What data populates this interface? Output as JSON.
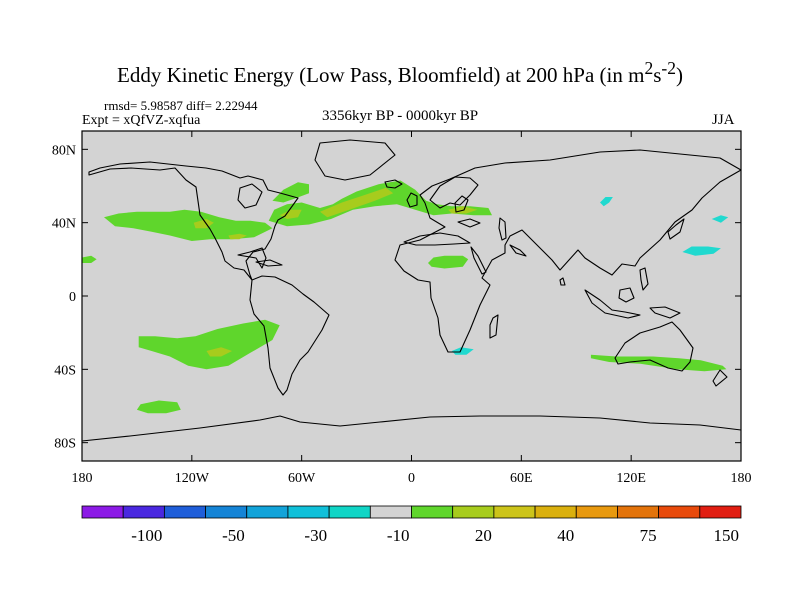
{
  "header": {
    "title_main": "Eddy Kinetic Energy (Low Pass, Bloomfield) at 200 hPa (in m",
    "title_sup1": "2",
    "title_s": "s",
    "title_sup2": "-2",
    "title_close": ")",
    "stats": "rmsd= 5.98587 diff= 2.22944",
    "expt": "Expt = xQfVZ-xqfua",
    "period": "3356kyr BP - 0000kyr BP",
    "season": "JJA"
  },
  "colors": {
    "land_mask": "#d3d3d3",
    "coastline": "#000000",
    "green": "#5fd62c",
    "yellow_green": "#a7cc1d",
    "cyan": "#20d9cf"
  },
  "chart_data": {
    "type": "heatmap",
    "title": "Eddy Kinetic Energy (Low Pass, Bloomfield) at 200 hPa (in m2s-2)",
    "projection": "cylindrical-equidistant",
    "xlim": [
      -180,
      180
    ],
    "ylim": [
      -90,
      90
    ],
    "x_ticks": [
      -180,
      -120,
      -60,
      0,
      60,
      120,
      180
    ],
    "x_tick_labels": [
      "180",
      "120W",
      "60W",
      "0",
      "60E",
      "120E",
      "180"
    ],
    "y_ticks": [
      80,
      40,
      0,
      -40,
      -80
    ],
    "y_tick_labels": [
      "80N",
      "40N",
      "0",
      "40S",
      "80S"
    ],
    "colorbar": {
      "colors": [
        "#8c1ae6",
        "#4a28e0",
        "#1f5ed9",
        "#1584d6",
        "#12a3d9",
        "#10c0d9",
        "#10d5c6",
        "#d3d3d3",
        "#5fd62c",
        "#a7cc1d",
        "#ccc41a",
        "#dab00e",
        "#e8990f",
        "#e3730a",
        "#e84a0b",
        "#e11e12"
      ],
      "labels": [
        "-100",
        "-50",
        "-30",
        "-10",
        "20",
        "40",
        "75",
        "150"
      ],
      "label_boundary_index": [
        2,
        4,
        6,
        8,
        10,
        12,
        14,
        16
      ]
    },
    "regions": [
      {
        "name": "north-atlantic-green-band",
        "level": "10 to 20",
        "color": "green",
        "lonlat": [
          [
            -78,
            41
          ],
          [
            -75,
            47
          ],
          [
            -68,
            50
          ],
          [
            -60,
            51
          ],
          [
            -50,
            48
          ],
          [
            -43,
            50
          ],
          [
            -38,
            53
          ],
          [
            -30,
            57
          ],
          [
            -18,
            61
          ],
          [
            -6,
            63
          ],
          [
            2,
            58
          ],
          [
            8,
            52
          ],
          [
            14,
            50
          ],
          [
            22,
            49
          ],
          [
            32,
            49
          ],
          [
            42,
            48
          ],
          [
            44,
            44
          ],
          [
            34,
            44
          ],
          [
            22,
            45
          ],
          [
            12,
            44
          ],
          [
            2,
            47
          ],
          [
            -8,
            50
          ],
          [
            -20,
            49
          ],
          [
            -32,
            47
          ],
          [
            -44,
            42
          ],
          [
            -56,
            39
          ],
          [
            -68,
            38
          ]
        ]
      },
      {
        "name": "north-america-pacific-green-band",
        "level": "10 to 20",
        "color": "green",
        "lonlat": [
          [
            -168,
            43
          ],
          [
            -160,
            45
          ],
          [
            -150,
            46
          ],
          [
            -140,
            46
          ],
          [
            -132,
            46
          ],
          [
            -124,
            47
          ],
          [
            -115,
            46
          ],
          [
            -105,
            43
          ],
          [
            -96,
            41
          ],
          [
            -88,
            41
          ],
          [
            -80,
            40
          ],
          [
            -76,
            37
          ],
          [
            -86,
            32
          ],
          [
            -98,
            31
          ],
          [
            -110,
            31
          ],
          [
            -120,
            30
          ],
          [
            -132,
            33
          ],
          [
            -142,
            35
          ],
          [
            -152,
            37
          ],
          [
            -162,
            38
          ]
        ]
      },
      {
        "name": "canada-green-patch",
        "level": "10 to 20",
        "color": "green",
        "lonlat": [
          [
            -76,
            52
          ],
          [
            -70,
            58
          ],
          [
            -62,
            62
          ],
          [
            -56,
            61
          ],
          [
            -56,
            56
          ],
          [
            -64,
            53
          ],
          [
            -70,
            51
          ]
        ]
      },
      {
        "name": "north-africa-green-patch",
        "level": "10 to 20",
        "color": "green",
        "lonlat": [
          [
            9,
            18
          ],
          [
            12,
            21
          ],
          [
            18,
            22
          ],
          [
            28,
            22
          ],
          [
            31,
            20
          ],
          [
            28,
            16
          ],
          [
            18,
            15
          ],
          [
            11,
            16
          ]
        ]
      },
      {
        "name": "mid-pacific-green-dot",
        "level": "10 to 20",
        "color": "green",
        "lonlat": [
          [
            -180,
            21
          ],
          [
            -175,
            22
          ],
          [
            -172,
            20
          ],
          [
            -175,
            18
          ],
          [
            -180,
            18
          ]
        ]
      },
      {
        "name": "south-pacific-green-patch",
        "level": "10 to 20",
        "color": "green",
        "lonlat": [
          [
            -149,
            -22
          ],
          [
            -140,
            -22
          ],
          [
            -128,
            -23
          ],
          [
            -118,
            -22
          ],
          [
            -106,
            -18
          ],
          [
            -92,
            -15
          ],
          [
            -80,
            -13
          ],
          [
            -72,
            -16
          ],
          [
            -76,
            -24
          ],
          [
            -88,
            -31
          ],
          [
            -100,
            -38
          ],
          [
            -112,
            -40
          ],
          [
            -122,
            -38
          ],
          [
            -132,
            -33
          ],
          [
            -142,
            -30
          ],
          [
            -149,
            -28
          ]
        ]
      },
      {
        "name": "southern-ocean-green-patch",
        "level": "10 to 20",
        "color": "green",
        "lonlat": [
          [
            -148,
            -59
          ],
          [
            -138,
            -57
          ],
          [
            -128,
            -58
          ],
          [
            -126,
            -62
          ],
          [
            -134,
            -64
          ],
          [
            -144,
            -64
          ],
          [
            -150,
            -62
          ]
        ]
      },
      {
        "name": "australia-green-band",
        "level": "10 to 20",
        "color": "green",
        "lonlat": [
          [
            98,
            -32
          ],
          [
            112,
            -33
          ],
          [
            132,
            -33
          ],
          [
            146,
            -34
          ],
          [
            158,
            -35
          ],
          [
            170,
            -38
          ],
          [
            172,
            -40
          ],
          [
            160,
            -41
          ],
          [
            145,
            -40
          ],
          [
            125,
            -37
          ],
          [
            108,
            -36
          ],
          [
            98,
            -34
          ]
        ]
      },
      {
        "name": "atlantic-yellow-core",
        "level": "20 to 30",
        "color": "yellow_green",
        "lonlat": [
          [
            -50,
            46
          ],
          [
            -38,
            51
          ],
          [
            -26,
            55
          ],
          [
            -14,
            59
          ],
          [
            -10,
            56
          ],
          [
            -20,
            52
          ],
          [
            -34,
            47
          ],
          [
            -46,
            43
          ]
        ]
      },
      {
        "name": "great-lakes-yellow-core",
        "level": "20 to 30",
        "color": "yellow_green",
        "lonlat": [
          [
            -72,
            44
          ],
          [
            -66,
            47
          ],
          [
            -60,
            47
          ],
          [
            -62,
            43
          ],
          [
            -68,
            42
          ]
        ]
      },
      {
        "name": "europe-yellow-core",
        "level": "20 to 30",
        "color": "yellow_green",
        "lonlat": [
          [
            20,
            47
          ],
          [
            28,
            49
          ],
          [
            36,
            47
          ],
          [
            30,
            45
          ],
          [
            22,
            45
          ]
        ]
      },
      {
        "name": "us-west-yellow-core",
        "level": "20 to 30",
        "color": "yellow_green",
        "lonlat": [
          [
            -119,
            40
          ],
          [
            -112,
            42
          ],
          [
            -108,
            40
          ],
          [
            -112,
            37
          ],
          [
            -118,
            37
          ]
        ]
      },
      {
        "name": "us-south-yellow-core",
        "level": "20 to 30",
        "color": "yellow_green",
        "lonlat": [
          [
            -100,
            33
          ],
          [
            -94,
            34
          ],
          [
            -90,
            33
          ],
          [
            -94,
            31
          ],
          [
            -99,
            31
          ]
        ]
      },
      {
        "name": "south-pacific-yellow-core",
        "level": "20 to 30",
        "color": "yellow_green",
        "lonlat": [
          [
            -112,
            -30
          ],
          [
            -104,
            -28
          ],
          [
            -98,
            -30
          ],
          [
            -104,
            -33
          ],
          [
            -110,
            -33
          ]
        ]
      },
      {
        "name": "mongolia-cyan-patch",
        "level": "-10 to 0",
        "color": "cyan",
        "lonlat": [
          [
            103,
            51
          ],
          [
            106,
            54
          ],
          [
            110,
            54
          ],
          [
            108,
            51
          ],
          [
            105,
            49
          ]
        ]
      },
      {
        "name": "north-pacific-cyan-patch",
        "level": "-10 to 0",
        "color": "cyan",
        "lonlat": [
          [
            148,
            24
          ],
          [
            153,
            27
          ],
          [
            162,
            27
          ],
          [
            169,
            26
          ],
          [
            165,
            23
          ],
          [
            155,
            22
          ]
        ]
      },
      {
        "name": "north-pacific-cyan-dot",
        "level": "-10 to 0",
        "color": "cyan",
        "lonlat": [
          [
            164,
            42
          ],
          [
            169,
            44
          ],
          [
            173,
            43
          ],
          [
            169,
            40
          ]
        ]
      },
      {
        "name": "south-africa-cyan-dot",
        "level": "-10 to 0",
        "color": "cyan",
        "lonlat": [
          [
            22,
            -30
          ],
          [
            27,
            -28
          ],
          [
            34,
            -29
          ],
          [
            30,
            -32
          ],
          [
            24,
            -32
          ]
        ]
      }
    ]
  }
}
